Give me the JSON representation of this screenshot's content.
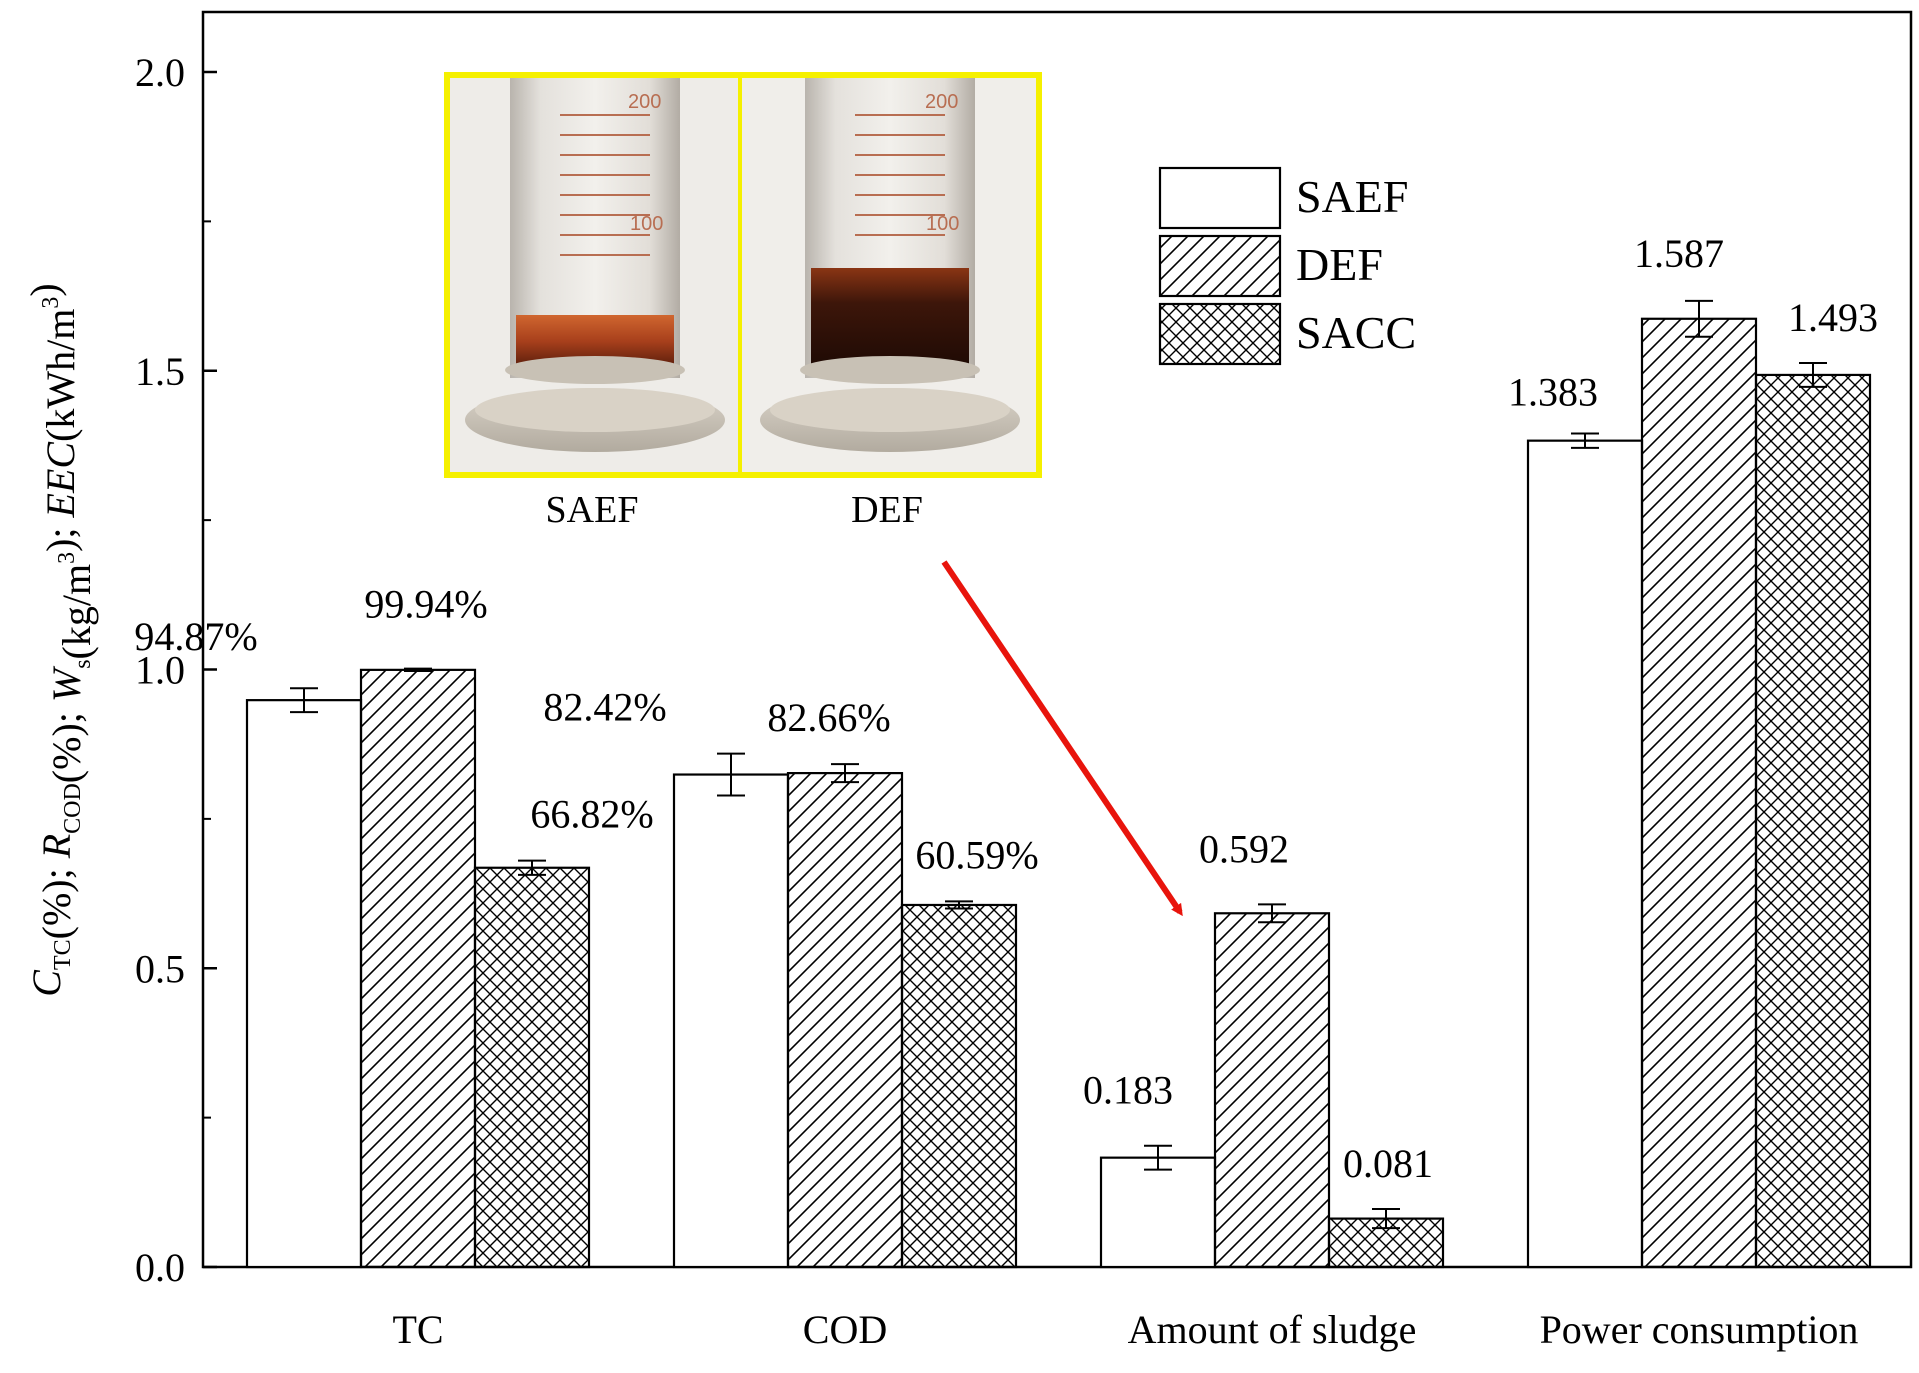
{
  "chart_data": {
    "type": "bar",
    "y_axis": {
      "title_parts": [
        {
          "text": "C",
          "style": "italic"
        },
        {
          "text": "TC",
          "style": "sub"
        },
        {
          "text": "(%); ",
          "style": "normal"
        },
        {
          "text": "R",
          "style": "italic"
        },
        {
          "text": "COD",
          "style": "sub"
        },
        {
          "text": "(%); ",
          "style": "normal"
        },
        {
          "text": "W",
          "style": "italic"
        },
        {
          "text": "s",
          "style": "sub"
        },
        {
          "text": "(kg/m",
          "style": "normal"
        },
        {
          "text": "3",
          "style": "sup"
        },
        {
          "text": "); ",
          "style": "normal"
        },
        {
          "text": "EEC",
          "style": "italic"
        },
        {
          "text": "(kWh/m",
          "style": "normal"
        },
        {
          "text": "3",
          "style": "sup"
        },
        {
          "text": ")",
          "style": "normal"
        }
      ],
      "ylim": [
        0.0,
        2.0
      ],
      "ticks": [
        "0.0",
        "0.5",
        "1.0",
        "1.5",
        "2.0"
      ]
    },
    "categories": [
      "TC",
      "COD",
      "Amount of sludge",
      "Power consumption"
    ],
    "series": [
      {
        "name": "SAEF",
        "pattern": "empty",
        "values": [
          0.9487,
          0.8242,
          0.183,
          1.383
        ],
        "errors": [
          0.02,
          0.035,
          0.02,
          0.012
        ],
        "labels": [
          "94.87%",
          "82.42%",
          "0.183",
          "1.383"
        ]
      },
      {
        "name": "DEF",
        "pattern": "hatch",
        "values": [
          0.9994,
          0.8266,
          0.592,
          1.587
        ],
        "errors": [
          0.002,
          0.015,
          0.015,
          0.03
        ],
        "labels": [
          "99.94%",
          "82.66%",
          "0.592",
          "1.587"
        ]
      },
      {
        "name": "SACC",
        "pattern": "crosshatch",
        "values": [
          0.6682,
          0.6059,
          0.081,
          1.493
        ],
        "errors": [
          0.012,
          0.006,
          0.016,
          0.02
        ],
        "labels": [
          "66.82%",
          "60.59%",
          "0.081",
          "1.493"
        ]
      }
    ],
    "legend": {
      "position": "top-right",
      "entries": [
        "SAEF",
        "DEF",
        "SACC"
      ]
    },
    "inset_photo": {
      "panels": [
        {
          "label": "SAEF",
          "scale_marks": [
            "200",
            "100"
          ],
          "sediment": "orange-brown, thin"
        },
        {
          "label": "DEF",
          "scale_marks": [
            "200",
            "100"
          ],
          "sediment": "dark brown, thick"
        }
      ],
      "border_color": "#f5f000",
      "arrow_color": "#e8140c"
    },
    "grid": false
  }
}
